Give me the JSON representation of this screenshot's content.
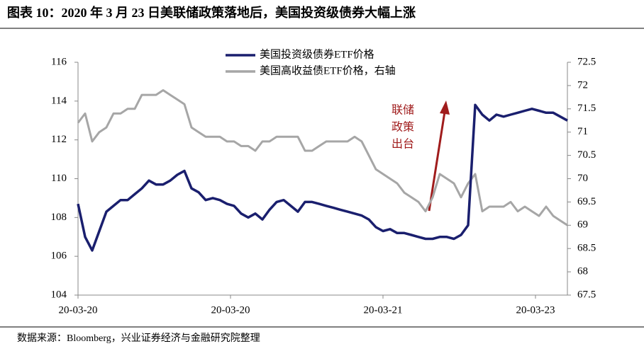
{
  "chart_data": {
    "type": "line",
    "title": "图表 10：2020 年 3 月 23 日美联储政策落地后，美国投资级债券大幅上涨",
    "source": "数据来源：Bloomberg，兴业证券经济与金融研究院整理",
    "annotation": [
      "联储",
      "政策",
      "出台"
    ],
    "x": [
      0,
      1,
      2,
      3,
      4,
      5,
      6,
      7,
      8,
      9,
      10,
      11,
      12,
      13,
      14,
      15,
      16,
      17,
      18,
      19,
      20,
      21,
      22,
      23,
      24,
      25,
      26,
      27,
      28,
      29,
      30,
      31,
      32,
      33,
      34,
      35,
      36,
      37,
      38,
      39,
      40,
      41,
      42,
      43,
      44,
      45,
      46,
      47,
      48,
      49,
      50,
      51,
      52,
      53,
      54,
      55,
      56,
      57,
      58,
      59,
      60,
      61,
      62,
      63,
      64,
      65,
      66,
      67,
      68,
      69
    ],
    "xlim": [
      0,
      69
    ],
    "xticks": [
      {
        "value": 0,
        "label": "20-03-20"
      },
      {
        "value": 21.5,
        "label": "20-03-20"
      },
      {
        "value": 43,
        "label": "20-03-21"
      },
      {
        "value": 64.5,
        "label": "20-03-23"
      }
    ],
    "ylim": [
      104,
      116
    ],
    "yticks": [
      104,
      106,
      108,
      110,
      112,
      114,
      116
    ],
    "y2lim": [
      67.5,
      72.5
    ],
    "y2ticks": [
      67.5,
      68,
      68.5,
      69,
      69.5,
      70,
      70.5,
      71,
      71.5,
      72,
      72.5
    ],
    "series": [
      {
        "name": "美国投资级债券ETF价格",
        "color": "#1a1f6e",
        "values": [
          108.7,
          107,
          106.3,
          107.3,
          108.3,
          108.6,
          108.9,
          108.9,
          109.2,
          109.5,
          109.9,
          109.7,
          109.7,
          109.9,
          110.2,
          110.4,
          109.5,
          109.3,
          108.9,
          109.0,
          108.9,
          108.7,
          108.6,
          108.2,
          108.0,
          108.2,
          107.9,
          108.4,
          108.8,
          108.9,
          108.6,
          108.3,
          108.8,
          108.8,
          108.7,
          108.6,
          108.5,
          108.4,
          108.3,
          108.2,
          108.1,
          107.9,
          107.5,
          107.3,
          107.4,
          107.2,
          107.2,
          107.1,
          107.0,
          106.9,
          106.9,
          107.0,
          107.0,
          106.9,
          107.1,
          107.6,
          113.8,
          113.3,
          113.0,
          113.3,
          113.2,
          113.3,
          113.4,
          113.5,
          113.6,
          113.5,
          113.4,
          113.4,
          113.2,
          113.0
        ]
      },
      {
        "name": "美国高收益债ETF价格，右轴",
        "color": "#a6a6a6",
        "axis": "y2",
        "values": [
          71.2,
          71.4,
          70.8,
          71.0,
          71.1,
          71.4,
          71.4,
          71.5,
          71.5,
          71.8,
          71.8,
          71.8,
          71.9,
          71.8,
          71.7,
          71.6,
          71.1,
          71.0,
          70.9,
          70.9,
          70.9,
          70.8,
          70.8,
          70.7,
          70.7,
          70.6,
          70.8,
          70.8,
          70.9,
          70.9,
          70.9,
          70.9,
          70.6,
          70.6,
          70.7,
          70.8,
          70.8,
          70.8,
          70.8,
          70.9,
          70.8,
          70.5,
          70.2,
          70.1,
          70.0,
          69.9,
          69.7,
          69.6,
          69.5,
          69.3,
          69.6,
          70.1,
          70.0,
          69.9,
          69.6,
          69.9,
          70.1,
          69.3,
          69.4,
          69.4,
          69.4,
          69.5,
          69.3,
          69.4,
          69.3,
          69.2,
          69.4,
          69.2,
          69.1,
          69.0
        ]
      }
    ]
  }
}
